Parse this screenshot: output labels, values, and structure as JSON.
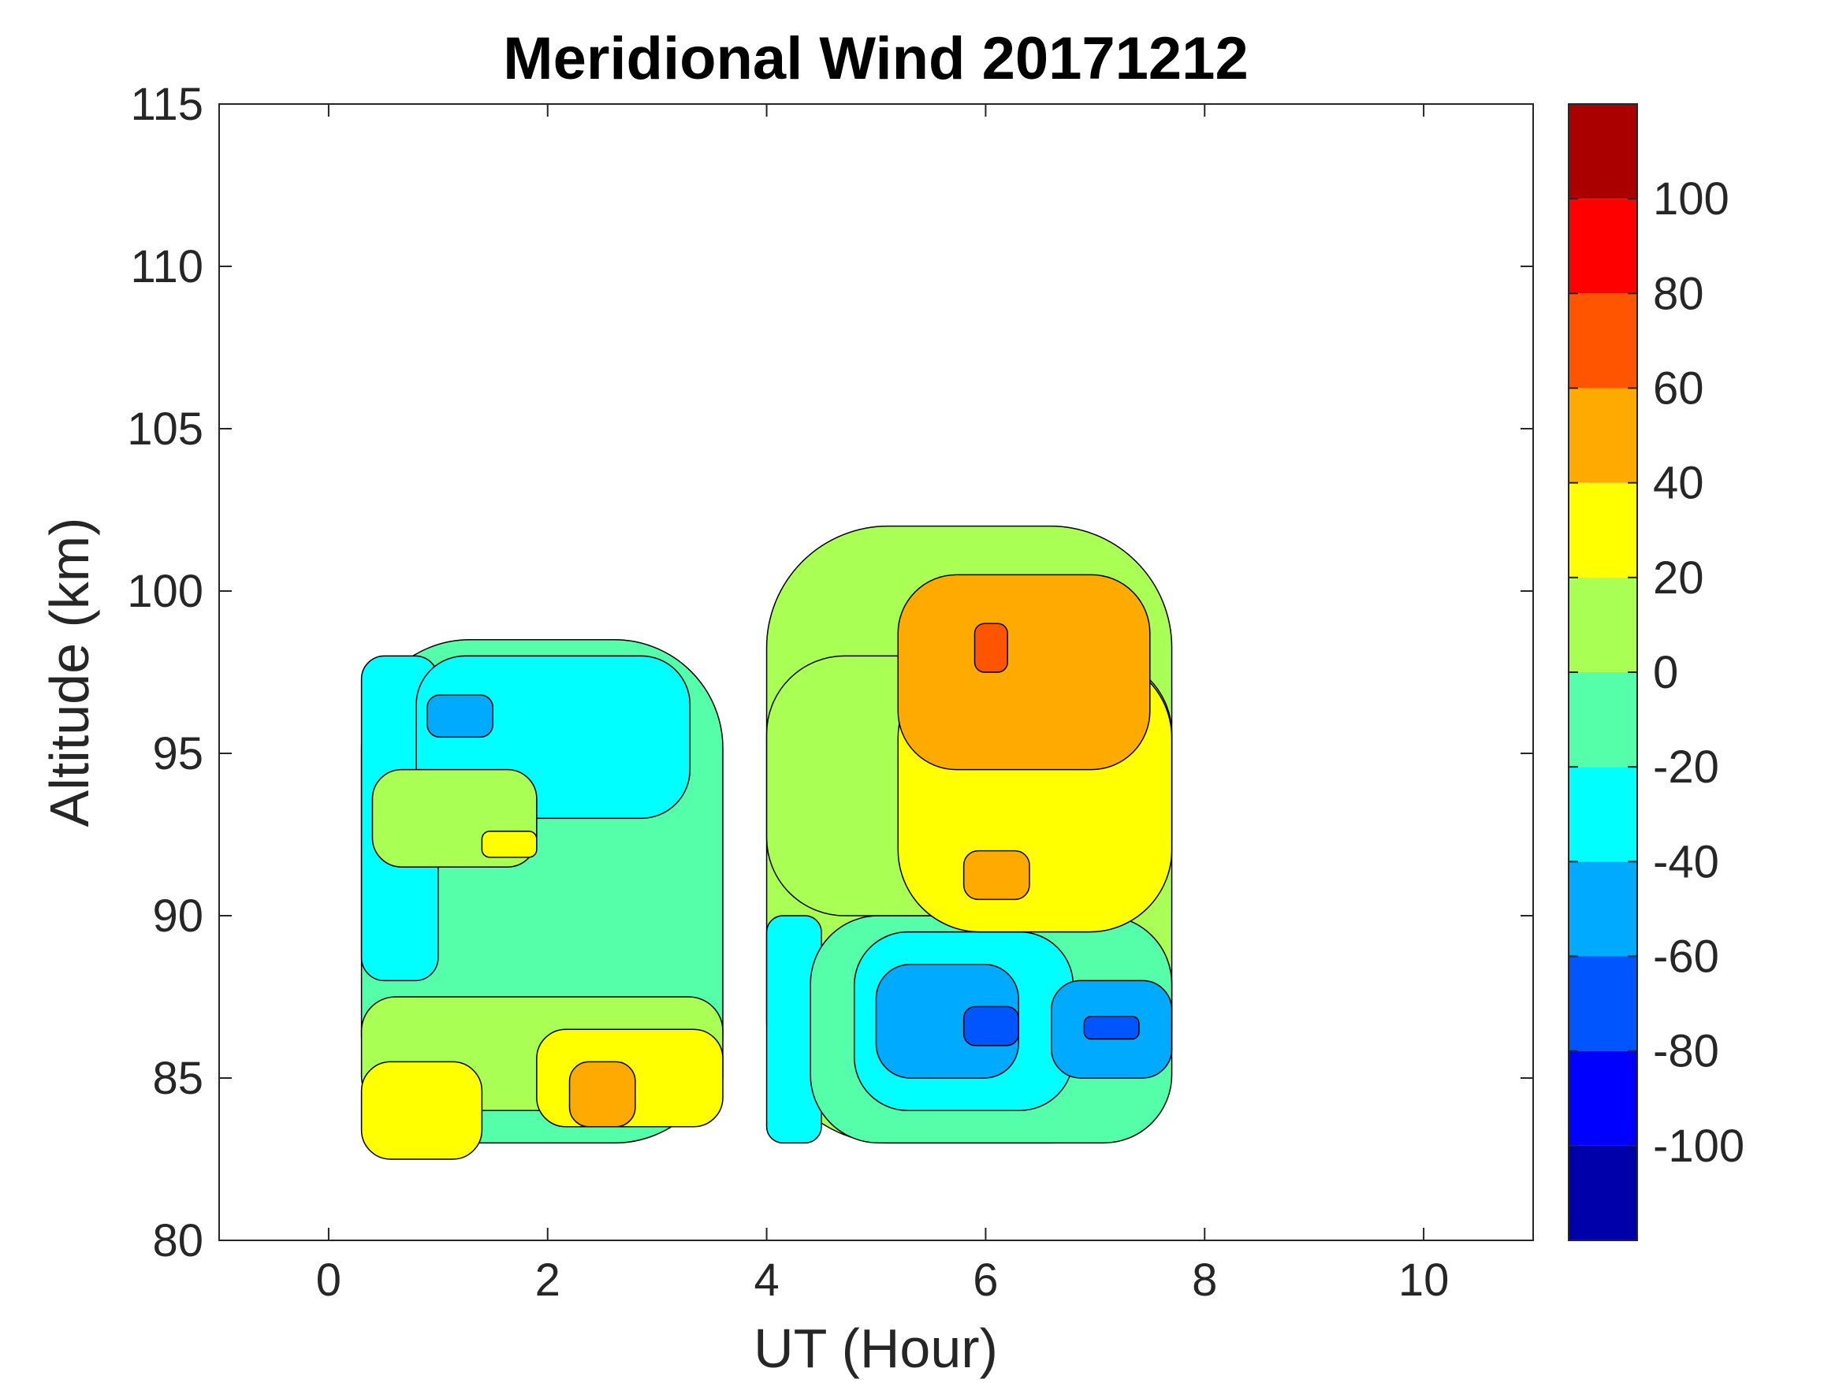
{
  "chart_data": {
    "type": "heatmap",
    "title": "Meridional Wind 20171212",
    "xlabel": "UT (Hour)",
    "ylabel": "Altitude (km)",
    "xlim": [
      -1,
      11
    ],
    "ylim": [
      80,
      115
    ],
    "x_ticks": [
      0,
      2,
      4,
      6,
      8,
      10
    ],
    "y_ticks": [
      80,
      85,
      90,
      95,
      100,
      105,
      110,
      115
    ],
    "grid": false,
    "colorbar": {
      "range": [
        -120,
        120
      ],
      "ticks": [
        -100,
        -80,
        -60,
        -40,
        -20,
        0,
        20,
        40,
        60,
        80,
        100
      ],
      "levels": [
        {
          "from": -120,
          "to": -100,
          "color": "#0000AA"
        },
        {
          "from": -100,
          "to": -80,
          "color": "#0000FF"
        },
        {
          "from": -80,
          "to": -60,
          "color": "#0055FF"
        },
        {
          "from": -60,
          "to": -40,
          "color": "#00AAFF"
        },
        {
          "from": -40,
          "to": -20,
          "color": "#00FFFF"
        },
        {
          "from": -20,
          "to": 0,
          "color": "#55FFAA"
        },
        {
          "from": 0,
          "to": 20,
          "color": "#AAFF55"
        },
        {
          "from": 20,
          "to": 40,
          "color": "#FFFF00"
        },
        {
          "from": 40,
          "to": 60,
          "color": "#FFAA00"
        },
        {
          "from": 60,
          "to": 80,
          "color": "#FF5500"
        },
        {
          "from": 80,
          "to": 100,
          "color": "#FF0000"
        },
        {
          "from": 100,
          "to": 120,
          "color": "#AA0000"
        }
      ]
    },
    "data_extent": [
      {
        "x_range": [
          0.3,
          3.6
        ],
        "altitude_range": [
          81.5,
          98.5
        ]
      },
      {
        "x_range": [
          4.0,
          7.7
        ],
        "altitude_range": [
          82.5,
          102.0
        ]
      }
    ],
    "regions": [
      {
        "x": [
          0.3,
          3.6
        ],
        "y": [
          83,
          98.5
        ],
        "value": -10
      },
      {
        "x": [
          4.0,
          7.7
        ],
        "y": [
          83,
          102
        ],
        "value": 10
      },
      {
        "x": [
          0.3,
          1.0
        ],
        "y": [
          88,
          98
        ],
        "value": -30
      },
      {
        "x": [
          0.8,
          3.3
        ],
        "y": [
          93,
          98
        ],
        "value": -30
      },
      {
        "x": [
          0.9,
          1.5
        ],
        "y": [
          95.5,
          96.8
        ],
        "value": -50
      },
      {
        "x": [
          0.4,
          1.9
        ],
        "y": [
          91.5,
          94.5
        ],
        "value": 10
      },
      {
        "x": [
          1.4,
          1.9
        ],
        "y": [
          91.8,
          92.6
        ],
        "value": 30
      },
      {
        "x": [
          0.3,
          3.6
        ],
        "y": [
          84,
          87.5
        ],
        "value": 10
      },
      {
        "x": [
          0.3,
          1.4
        ],
        "y": [
          82.5,
          85.5
        ],
        "value": 30
      },
      {
        "x": [
          1.9,
          3.6
        ],
        "y": [
          83.5,
          86.5
        ],
        "value": 30
      },
      {
        "x": [
          2.2,
          2.8
        ],
        "y": [
          83.5,
          85.5
        ],
        "value": 50
      },
      {
        "x": [
          4.0,
          4.5
        ],
        "y": [
          83,
          90
        ],
        "value": -30
      },
      {
        "x": [
          4.4,
          7.7
        ],
        "y": [
          83,
          90
        ],
        "value": -10
      },
      {
        "x": [
          4.8,
          6.8
        ],
        "y": [
          84,
          89.5
        ],
        "value": -30
      },
      {
        "x": [
          5.0,
          6.3
        ],
        "y": [
          85,
          88.5
        ],
        "value": -50
      },
      {
        "x": [
          5.8,
          6.3
        ],
        "y": [
          86,
          87.2
        ],
        "value": -70
      },
      {
        "x": [
          6.6,
          7.7
        ],
        "y": [
          85,
          88
        ],
        "value": -50
      },
      {
        "x": [
          6.9,
          7.4
        ],
        "y": [
          86.2,
          86.9
        ],
        "value": -70
      },
      {
        "x": [
          4.0,
          7.7
        ],
        "y": [
          90,
          98
        ],
        "value": 10
      },
      {
        "x": [
          5.2,
          7.7
        ],
        "y": [
          89.5,
          98
        ],
        "value": 30
      },
      {
        "x": [
          5.2,
          7.5
        ],
        "y": [
          94.5,
          100.5
        ],
        "value": 50
      },
      {
        "x": [
          5.9,
          6.2
        ],
        "y": [
          97.5,
          99
        ],
        "value": 70
      },
      {
        "x": [
          5.8,
          6.4
        ],
        "y": [
          90.5,
          92
        ],
        "value": 50
      }
    ]
  }
}
